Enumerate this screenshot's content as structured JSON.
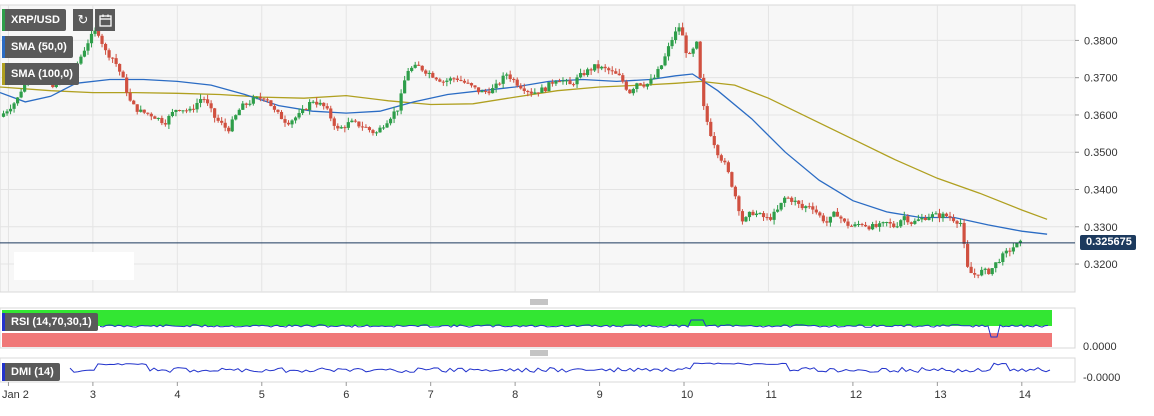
{
  "symbol": "XRP/USD",
  "icons": {
    "reload": "reload-icon",
    "calendar": "calendar-icon"
  },
  "indicators": {
    "sma50": {
      "label": "SMA (50,0)",
      "color": "#2b6cc4"
    },
    "sma100": {
      "label": "SMA (100,0)",
      "color": "#b0a020"
    },
    "rsi": {
      "label": "RSI (14,70,30,1)",
      "value_label": "0.0000",
      "color": "#2233cc"
    },
    "dmi": {
      "label": "DMI (14)",
      "value_label": "-0.0000",
      "color": "#2233cc"
    }
  },
  "colors": {
    "up": "#2e9e4a",
    "down": "#d05040",
    "price_line": "#1c3a5e",
    "rsi_overbought": "#33e633",
    "rsi_oversold": "#f07878"
  },
  "chart_data": {
    "type": "candlestick",
    "current_price": 0.325675,
    "current_price_label": "0.325675",
    "ylim": [
      0.3125,
      0.3895
    ],
    "y_ticks": [
      0.32,
      0.33,
      0.34,
      0.35,
      0.36,
      0.37,
      0.38
    ],
    "y_tick_labels": [
      "0.3200",
      "0.3300",
      "0.3400",
      "0.3500",
      "0.3600",
      "0.3700",
      "0.3800"
    ],
    "x_tick_labels": [
      "Jan 2",
      "3",
      "4",
      "5",
      "6",
      "7",
      "8",
      "9",
      "10",
      "11",
      "12",
      "13",
      "14"
    ],
    "x_ticks": [
      0,
      1,
      2,
      3,
      4,
      5,
      6,
      7,
      8,
      9,
      10,
      11,
      12
    ],
    "x_range": [
      -0.1,
      12.63
    ],
    "close_path": [
      [
        -0.1,
        0.3595
      ],
      [
        0.1,
        0.364
      ],
      [
        0.25,
        0.372
      ],
      [
        0.4,
        0.369
      ],
      [
        0.55,
        0.368
      ],
      [
        0.7,
        0.371
      ],
      [
        0.8,
        0.373
      ],
      [
        0.95,
        0.38
      ],
      [
        1.05,
        0.383
      ],
      [
        1.15,
        0.377
      ],
      [
        1.25,
        0.375
      ],
      [
        1.35,
        0.37
      ],
      [
        1.45,
        0.363
      ],
      [
        1.55,
        0.361
      ],
      [
        1.7,
        0.36
      ],
      [
        1.85,
        0.358
      ],
      [
        2.0,
        0.362
      ],
      [
        2.15,
        0.361
      ],
      [
        2.3,
        0.365
      ],
      [
        2.45,
        0.359
      ],
      [
        2.6,
        0.356
      ],
      [
        2.75,
        0.362
      ],
      [
        2.9,
        0.364
      ],
      [
        3.05,
        0.365
      ],
      [
        3.15,
        0.361
      ],
      [
        3.3,
        0.358
      ],
      [
        3.45,
        0.36
      ],
      [
        3.6,
        0.364
      ],
      [
        3.75,
        0.362
      ],
      [
        3.9,
        0.356
      ],
      [
        4.05,
        0.358
      ],
      [
        4.2,
        0.357
      ],
      [
        4.35,
        0.355
      ],
      [
        4.5,
        0.359
      ],
      [
        4.62,
        0.362
      ],
      [
        4.72,
        0.372
      ],
      [
        4.85,
        0.373
      ],
      [
        5.0,
        0.371
      ],
      [
        5.15,
        0.369
      ],
      [
        5.3,
        0.37
      ],
      [
        5.45,
        0.368
      ],
      [
        5.6,
        0.366
      ],
      [
        5.75,
        0.367
      ],
      [
        5.9,
        0.371
      ],
      [
        6.05,
        0.368
      ],
      [
        6.2,
        0.366
      ],
      [
        6.35,
        0.367
      ],
      [
        6.5,
        0.37
      ],
      [
        6.65,
        0.368
      ],
      [
        6.8,
        0.371
      ],
      [
        6.95,
        0.373
      ],
      [
        7.1,
        0.372
      ],
      [
        7.25,
        0.37
      ],
      [
        7.35,
        0.366
      ],
      [
        7.45,
        0.369
      ],
      [
        7.55,
        0.368
      ],
      [
        7.65,
        0.37
      ],
      [
        7.75,
        0.374
      ],
      [
        7.85,
        0.38
      ],
      [
        7.95,
        0.384
      ],
      [
        8.05,
        0.375
      ],
      [
        8.15,
        0.379
      ],
      [
        8.22,
        0.363
      ],
      [
        8.3,
        0.356
      ],
      [
        8.4,
        0.35
      ],
      [
        8.5,
        0.346
      ],
      [
        8.6,
        0.339
      ],
      [
        8.7,
        0.331
      ],
      [
        8.8,
        0.334
      ],
      [
        8.9,
        0.333
      ],
      [
        9.0,
        0.332
      ],
      [
        9.1,
        0.334
      ],
      [
        9.2,
        0.338
      ],
      [
        9.3,
        0.337
      ],
      [
        9.4,
        0.335
      ],
      [
        9.5,
        0.336
      ],
      [
        9.6,
        0.333
      ],
      [
        9.7,
        0.331
      ],
      [
        9.8,
        0.334
      ],
      [
        9.9,
        0.331
      ],
      [
        10.0,
        0.33
      ],
      [
        10.1,
        0.331
      ],
      [
        10.2,
        0.33
      ],
      [
        10.3,
        0.33
      ],
      [
        10.4,
        0.331
      ],
      [
        10.5,
        0.33
      ],
      [
        10.6,
        0.333
      ],
      [
        10.7,
        0.331
      ],
      [
        10.8,
        0.332
      ],
      [
        10.9,
        0.333
      ],
      [
        11.0,
        0.333
      ],
      [
        11.1,
        0.333
      ],
      [
        11.2,
        0.332
      ],
      [
        11.28,
        0.331
      ],
      [
        11.35,
        0.319
      ],
      [
        11.42,
        0.317
      ],
      [
        11.52,
        0.318
      ],
      [
        11.62,
        0.318
      ],
      [
        11.72,
        0.321
      ],
      [
        11.82,
        0.323
      ],
      [
        11.92,
        0.325
      ],
      [
        12.0,
        0.325675
      ]
    ],
    "sma50": [
      [
        -0.1,
        0.366
      ],
      [
        0.2,
        0.3635
      ],
      [
        0.5,
        0.365
      ],
      [
        0.8,
        0.3685
      ],
      [
        1.2,
        0.3695
      ],
      [
        1.6,
        0.3695
      ],
      [
        2.0,
        0.369
      ],
      [
        2.4,
        0.368
      ],
      [
        2.8,
        0.3655
      ],
      [
        3.2,
        0.3625
      ],
      [
        3.6,
        0.361
      ],
      [
        4.0,
        0.3605
      ],
      [
        4.4,
        0.361
      ],
      [
        4.8,
        0.3635
      ],
      [
        5.2,
        0.3655
      ],
      [
        5.6,
        0.3665
      ],
      [
        6.0,
        0.3675
      ],
      [
        6.4,
        0.369
      ],
      [
        6.8,
        0.3695
      ],
      [
        7.2,
        0.369
      ],
      [
        7.6,
        0.3695
      ],
      [
        7.9,
        0.3705
      ],
      [
        8.1,
        0.371
      ],
      [
        8.4,
        0.3665
      ],
      [
        8.8,
        0.359
      ],
      [
        9.2,
        0.35
      ],
      [
        9.6,
        0.3425
      ],
      [
        10.0,
        0.337
      ],
      [
        10.4,
        0.334
      ],
      [
        10.8,
        0.3325
      ],
      [
        11.2,
        0.3325
      ],
      [
        11.6,
        0.3305
      ],
      [
        12.0,
        0.3288
      ],
      [
        12.3,
        0.328
      ]
    ],
    "sma100": [
      [
        -0.1,
        0.3675
      ],
      [
        0.5,
        0.3665
      ],
      [
        1.0,
        0.366
      ],
      [
        1.5,
        0.366
      ],
      [
        2.0,
        0.3658
      ],
      [
        2.5,
        0.3655
      ],
      [
        3.0,
        0.3648
      ],
      [
        3.5,
        0.3645
      ],
      [
        4.0,
        0.3652
      ],
      [
        4.5,
        0.3638
      ],
      [
        5.0,
        0.3628
      ],
      [
        5.5,
        0.363
      ],
      [
        6.0,
        0.3648
      ],
      [
        6.5,
        0.3665
      ],
      [
        7.0,
        0.3675
      ],
      [
        7.5,
        0.368
      ],
      [
        7.9,
        0.3685
      ],
      [
        8.2,
        0.369
      ],
      [
        8.6,
        0.368
      ],
      [
        9.0,
        0.3645
      ],
      [
        9.5,
        0.359
      ],
      [
        10.0,
        0.3535
      ],
      [
        10.5,
        0.348
      ],
      [
        11.0,
        0.343
      ],
      [
        11.5,
        0.339
      ],
      [
        12.0,
        0.3345
      ],
      [
        12.3,
        0.332
      ]
    ]
  }
}
